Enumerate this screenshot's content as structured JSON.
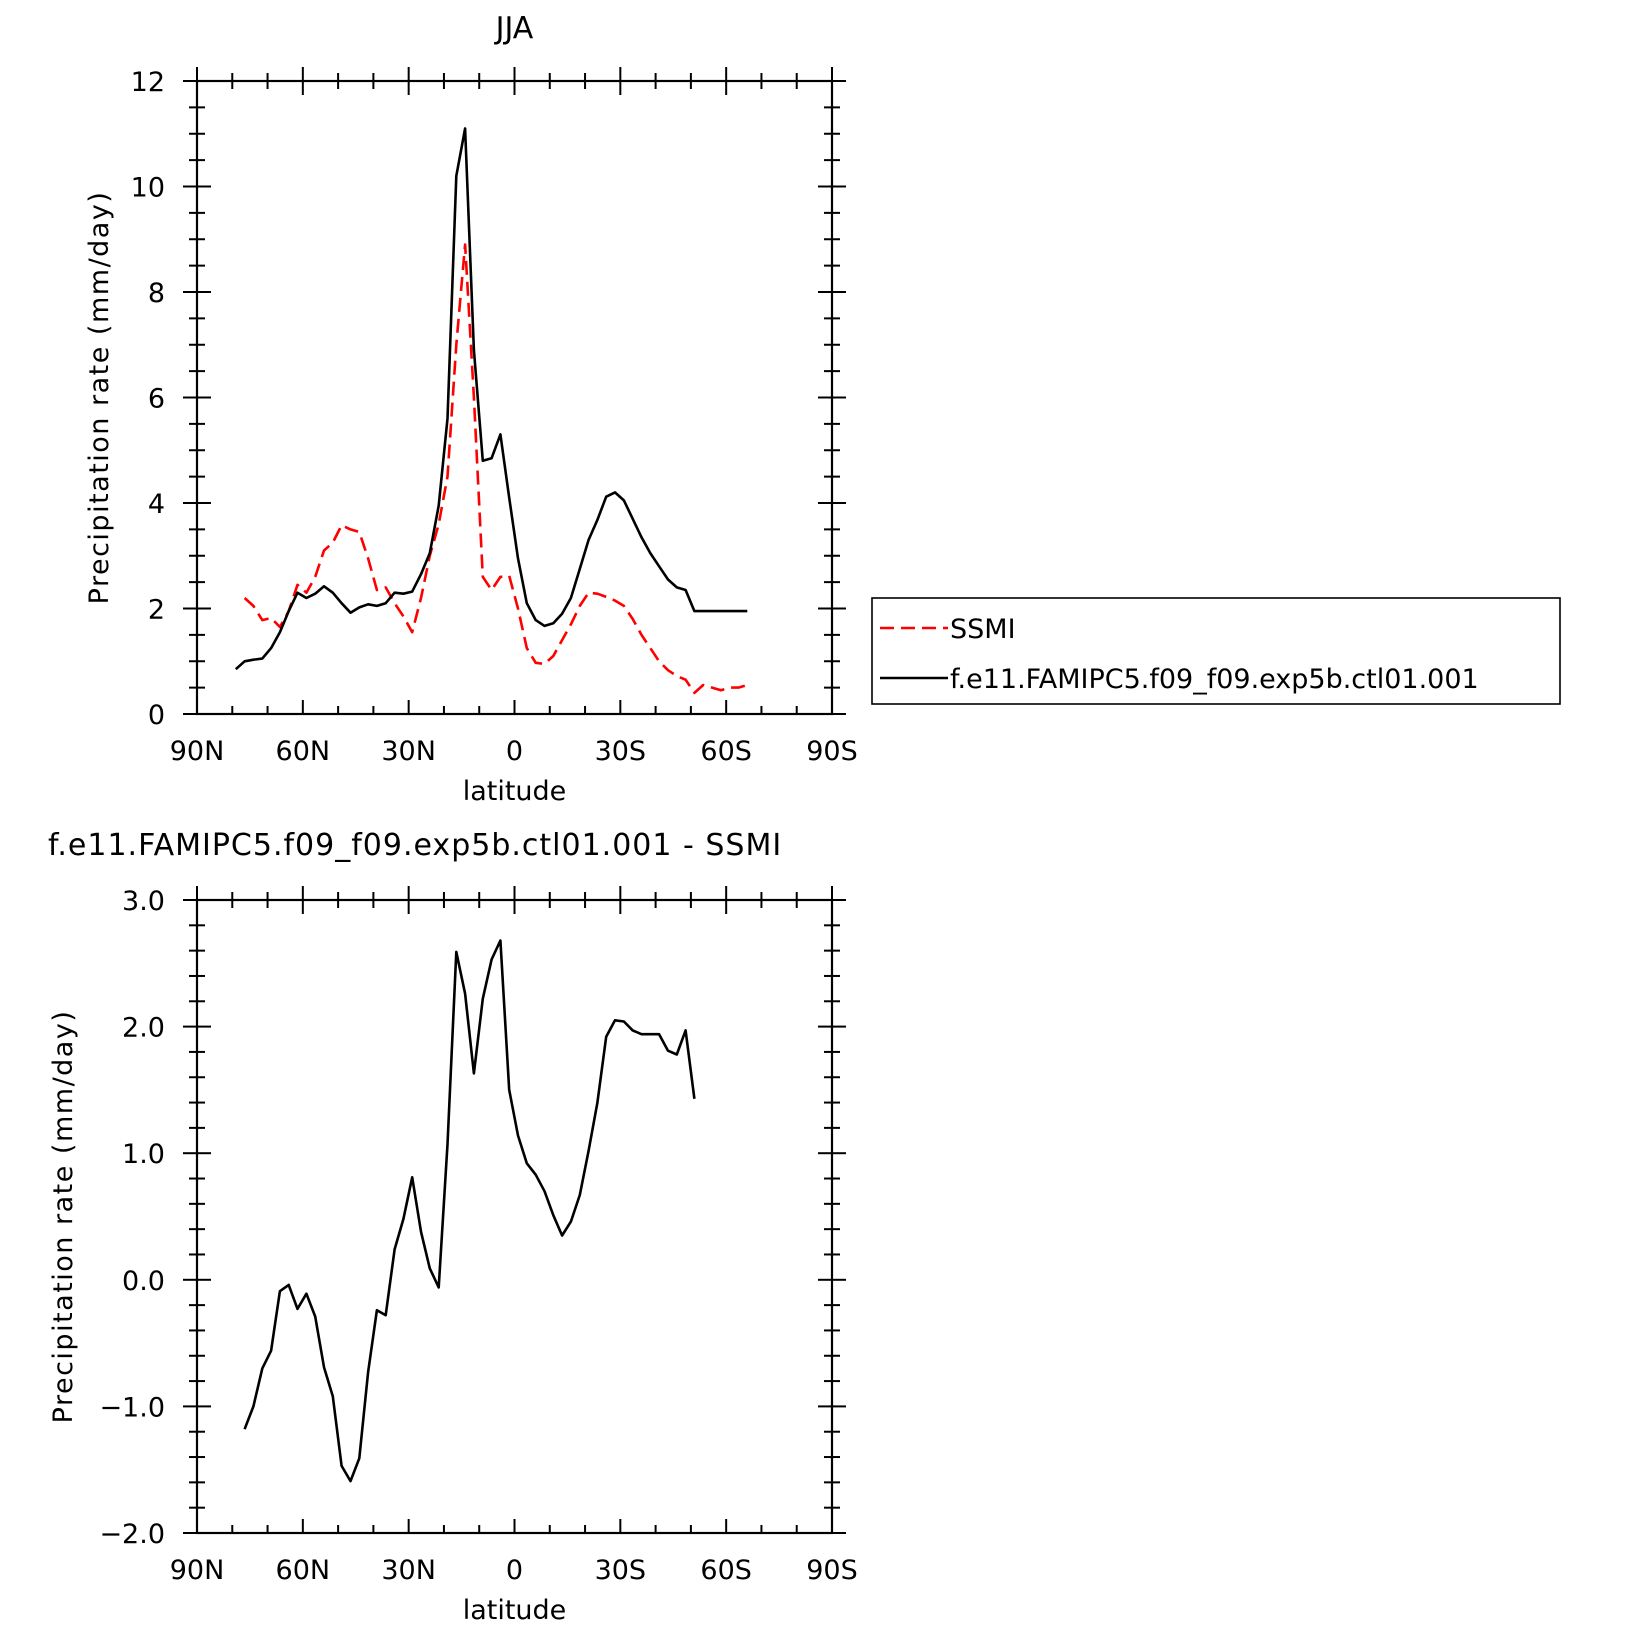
{
  "figure": {
    "background": "#ffffff"
  },
  "chart_data": [
    {
      "type": "line",
      "title": "JJA",
      "xlabel": "latitude",
      "ylabel": "Precipitation rate (mm/day)",
      "xlim": [
        90,
        -90
      ],
      "ylim": [
        0,
        12
      ],
      "x_ticks": [
        90,
        60,
        30,
        0,
        -30,
        -60,
        -90
      ],
      "x_tick_labels": [
        "90N",
        "60N",
        "30N",
        "0",
        "30S",
        "60S",
        "90S"
      ],
      "y_ticks": [
        0,
        2,
        4,
        6,
        8,
        10,
        12
      ],
      "y_tick_labels": [
        "0",
        "2",
        "4",
        "6",
        "8",
        "10",
        "12"
      ],
      "grid": false,
      "legend_position": "right",
      "series": [
        {
          "name": "SSMI",
          "color": "#ff0000",
          "dash": "dashed",
          "x": [
            76.5,
            74,
            71.5,
            69,
            66.5,
            64,
            61.5,
            59,
            56.5,
            54,
            51.5,
            49,
            46.5,
            44,
            41.5,
            39,
            36.5,
            34,
            31.5,
            29,
            26.5,
            24,
            21.5,
            19,
            16.5,
            14,
            11.5,
            9,
            6.5,
            4,
            1.5,
            -1,
            -3.5,
            -6,
            -8.5,
            -11,
            -13.5,
            -16,
            -18.5,
            -21,
            -23.5,
            -26,
            -28.5,
            -31,
            -33.5,
            -36,
            -38.5,
            -41,
            -43.5,
            -46,
            -48.5,
            -51,
            -53.5,
            -56,
            -58.5,
            -61,
            -63.5,
            -66
          ],
          "y": [
            2.2,
            2.05,
            1.78,
            1.82,
            1.65,
            1.95,
            2.45,
            2.3,
            2.6,
            3.1,
            3.25,
            3.58,
            3.5,
            3.45,
            2.95,
            2.35,
            2.4,
            2.1,
            1.85,
            1.55,
            2.2,
            3.0,
            3.6,
            4.5,
            7.0,
            8.9,
            6.0,
            2.6,
            2.35,
            2.6,
            2.62,
            2.0,
            1.25,
            0.97,
            0.95,
            1.1,
            1.4,
            1.7,
            2.05,
            2.3,
            2.28,
            2.22,
            2.15,
            2.05,
            1.8,
            1.5,
            1.25,
            1.0,
            0.83,
            0.72,
            0.65,
            0.4,
            0.55,
            0.5,
            0.45,
            0.5,
            0.5,
            0.55
          ]
        },
        {
          "name": "f.e11.FAMIPC5.f09_f09.exp5b.ctl01.001",
          "color": "#000000",
          "dash": "solid",
          "x": [
            79,
            76.5,
            74,
            71.5,
            69,
            66.5,
            64,
            61.5,
            59,
            56.5,
            54,
            51.5,
            49,
            46.5,
            44,
            41.5,
            39,
            36.5,
            34,
            31.5,
            29,
            26.5,
            24,
            21.5,
            19,
            16.5,
            14,
            11.5,
            9,
            6.5,
            4,
            1.5,
            -1,
            -3.5,
            -6,
            -8.5,
            -11,
            -13.5,
            -16,
            -18.5,
            -21,
            -23.5,
            -26,
            -28.5,
            -31,
            -33.5,
            -36,
            -38.5,
            -41,
            -43.5,
            -46,
            -48.5,
            -51,
            -53.5,
            -56,
            -58.5,
            -61,
            -63.5,
            -66
          ],
          "y": [
            0.85,
            1.0,
            1.03,
            1.05,
            1.25,
            1.55,
            1.95,
            2.3,
            2.2,
            2.28,
            2.42,
            2.3,
            2.1,
            1.92,
            2.02,
            2.08,
            2.05,
            2.1,
            2.3,
            2.28,
            2.32,
            2.65,
            3.05,
            3.95,
            5.6,
            10.2,
            11.1,
            6.9,
            4.8,
            4.85,
            5.3,
            4.1,
            2.95,
            2.1,
            1.78,
            1.67,
            1.72,
            1.9,
            2.2,
            2.75,
            3.3,
            3.68,
            4.12,
            4.2,
            4.05,
            3.7,
            3.35,
            3.05,
            2.8,
            2.55,
            2.4,
            2.35,
            1.95,
            1.95,
            1.95,
            1.95,
            1.95,
            1.95,
            1.95
          ]
        }
      ]
    },
    {
      "type": "line",
      "title": "f.e11.FAMIPC5.f09_f09.exp5b.ctl01.001 - SSMI",
      "xlabel": "latitude",
      "ylabel": "Precipitation rate (mm/day)",
      "xlim": [
        90,
        -90
      ],
      "ylim": [
        -2.0,
        3.0
      ],
      "x_ticks": [
        90,
        60,
        30,
        0,
        -30,
        -60,
        -90
      ],
      "x_tick_labels": [
        "90N",
        "60N",
        "30N",
        "0",
        "30S",
        "60S",
        "90S"
      ],
      "y_ticks": [
        -2.0,
        -1.0,
        0.0,
        1.0,
        2.0,
        3.0
      ],
      "y_tick_labels": [
        "−2.0",
        "−1.0",
        "0.0",
        "1.0",
        "2.0",
        "3.0"
      ],
      "grid": false,
      "series": [
        {
          "color": "#000000",
          "dash": "solid",
          "x": [
            76.5,
            74,
            71.5,
            69,
            66.5,
            64,
            61.5,
            59,
            56.5,
            54,
            51.5,
            49,
            46.5,
            44,
            41.5,
            39,
            36.5,
            34,
            31.5,
            29,
            26.5,
            24,
            21.5,
            19,
            16.5,
            14,
            11.5,
            9,
            6.5,
            4,
            1.5,
            -1,
            -3.5,
            -6,
            -8.5,
            -11,
            -13.5,
            -16,
            -18.5,
            -21,
            -23.5,
            -26,
            -28.5,
            -31,
            -33.5,
            -36,
            -38.5,
            -41,
            -43.5,
            -46,
            -48.5,
            -51,
            -53.5,
            -56,
            -58.5,
            -61,
            -63.5,
            -66
          ],
          "y": [
            -1.18,
            -1.0,
            -0.7,
            -0.56,
            -0.09,
            -0.04,
            -0.23,
            -0.11,
            -0.29,
            -0.69,
            -0.92,
            -1.47,
            -1.59,
            -1.41,
            -0.73,
            -0.24,
            -0.28,
            0.24,
            0.48,
            0.81,
            0.38,
            0.09,
            -0.06,
            1.07,
            2.59,
            2.26,
            1.63,
            2.22,
            2.53,
            2.68,
            1.5,
            1.14,
            0.92,
            0.83,
            0.7,
            0.51,
            0.35,
            0.46,
            0.67,
            1.02,
            1.4,
            1.92,
            2.05,
            2.04,
            1.97,
            1.94,
            1.94,
            1.94,
            1.81,
            1.78,
            1.97,
            1.43,
            null,
            null,
            null,
            null,
            null,
            null
          ]
        }
      ]
    }
  ]
}
